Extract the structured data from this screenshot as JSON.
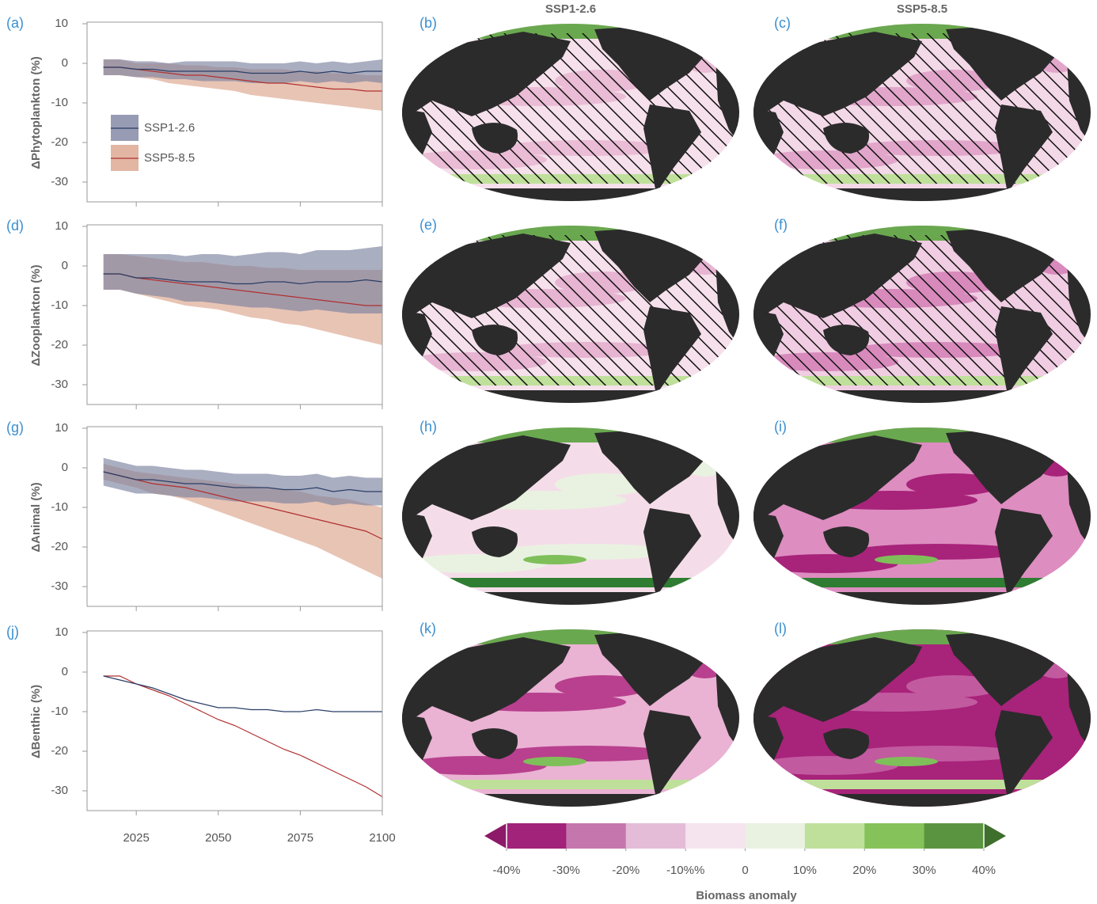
{
  "chart_data": [
    {
      "type": "line",
      "panel_label": "(a)",
      "ylabel": "ΔPhytoplankton (%)",
      "x": [
        2015,
        2020,
        2025,
        2030,
        2035,
        2040,
        2045,
        2050,
        2055,
        2060,
        2065,
        2070,
        2075,
        2080,
        2085,
        2090,
        2095,
        2100
      ],
      "xlim": [
        2010,
        2100
      ],
      "xticks": [
        2025,
        2050,
        2075,
        2100
      ],
      "xtick_labels": false,
      "ylim": [
        -35,
        10
      ],
      "yticks": [
        10,
        0,
        -10,
        -20,
        -30
      ],
      "legend": "upper left",
      "series": [
        {
          "name": "SSP5-8.5",
          "color": "#b03030",
          "band_color": "#dba48c",
          "values": [
            -1,
            -1,
            -1.5,
            -2,
            -2.5,
            -3,
            -3,
            -3.5,
            -4,
            -4.5,
            -5,
            -5,
            -5.5,
            -6,
            -6.5,
            -6.5,
            -7,
            -7
          ],
          "lower": [
            -3,
            -3,
            -3.5,
            -4,
            -5,
            -5.5,
            -6,
            -6.5,
            -7,
            -8,
            -8.5,
            -9,
            -9.5,
            -10,
            -10.5,
            -11,
            -11.5,
            -12
          ],
          "upper": [
            1,
            1,
            0,
            0,
            0,
            -0.5,
            -0.5,
            -1,
            -1,
            -1.5,
            -1.5,
            -1.5,
            -2,
            -2,
            -2.5,
            -2.5,
            -3,
            -3
          ]
        },
        {
          "name": "SSP1-2.6",
          "color": "#2a3e66",
          "band_color": "#7d82a0",
          "values": [
            -1,
            -1,
            -1.5,
            -1.5,
            -2,
            -2,
            -2,
            -2,
            -2,
            -2.5,
            -2.5,
            -2.5,
            -2,
            -2.5,
            -2,
            -2.5,
            -2,
            -2
          ],
          "lower": [
            -3,
            -3,
            -3.5,
            -3.5,
            -4,
            -4,
            -4.5,
            -4.5,
            -4.5,
            -5,
            -5,
            -5,
            -4.5,
            -5,
            -4.5,
            -5,
            -4.5,
            -5
          ],
          "upper": [
            1,
            1,
            0.5,
            0.5,
            0,
            0.5,
            0.5,
            0.5,
            0.5,
            0,
            0,
            0,
            0.5,
            0,
            0.5,
            0,
            0.5,
            1
          ]
        }
      ]
    },
    {
      "type": "line",
      "panel_label": "(d)",
      "ylabel": "ΔZooplankton (%)",
      "x": [
        2015,
        2020,
        2025,
        2030,
        2035,
        2040,
        2045,
        2050,
        2055,
        2060,
        2065,
        2070,
        2075,
        2080,
        2085,
        2090,
        2095,
        2100
      ],
      "xlim": [
        2010,
        2100
      ],
      "xticks": [
        2025,
        2050,
        2075,
        2100
      ],
      "xtick_labels": false,
      "ylim": [
        -35,
        10
      ],
      "yticks": [
        10,
        0,
        -10,
        -20,
        -30
      ],
      "series": [
        {
          "color": "#b03030",
          "band_color": "#dba48c",
          "values": [
            -2,
            -2,
            -3,
            -3.5,
            -4,
            -4.5,
            -5,
            -5.5,
            -6,
            -6.5,
            -7,
            -7.5,
            -8,
            -8.5,
            -9,
            -9.5,
            -10,
            -10
          ],
          "lower": [
            -6,
            -6,
            -7,
            -8,
            -9,
            -10,
            -10.5,
            -11,
            -12,
            -13,
            -13.5,
            -14.5,
            -15,
            -16,
            -17,
            -18,
            -19,
            -20
          ],
          "upper": [
            3,
            3,
            2.5,
            2,
            1.5,
            1,
            1,
            0.5,
            0,
            0,
            -0.5,
            -0.5,
            -1,
            -1,
            -1,
            -1,
            -1,
            -1
          ]
        },
        {
          "color": "#2a3e66",
          "band_color": "#7d82a0",
          "values": [
            -2,
            -2,
            -3,
            -3,
            -3.5,
            -4,
            -4,
            -4,
            -4.5,
            -4.5,
            -4,
            -4,
            -4.5,
            -4,
            -4,
            -4,
            -3.5,
            -4
          ],
          "lower": [
            -6,
            -6,
            -7,
            -7.5,
            -8,
            -9,
            -9,
            -9.5,
            -10,
            -10.5,
            -10.5,
            -11,
            -11.5,
            -11,
            -11.5,
            -12,
            -12,
            -12
          ],
          "upper": [
            3,
            3,
            3,
            3,
            3,
            2.5,
            3,
            3,
            2.5,
            3,
            3.5,
            3.5,
            3,
            4,
            4,
            4,
            4.5,
            5
          ]
        }
      ]
    },
    {
      "type": "line",
      "panel_label": "(g)",
      "ylabel": "ΔAnimal (%)",
      "x": [
        2015,
        2020,
        2025,
        2030,
        2035,
        2040,
        2045,
        2050,
        2055,
        2060,
        2065,
        2070,
        2075,
        2080,
        2085,
        2090,
        2095,
        2100
      ],
      "xlim": [
        2010,
        2100
      ],
      "xticks": [
        2025,
        2050,
        2075,
        2100
      ],
      "xtick_labels": false,
      "ylim": [
        -35,
        10
      ],
      "yticks": [
        10,
        0,
        -10,
        -20,
        -30
      ],
      "series": [
        {
          "color": "#b03030",
          "band_color": "#dba48c",
          "values": [
            -1,
            -2,
            -3,
            -4,
            -4.5,
            -5,
            -6,
            -7,
            -8,
            -9,
            -10,
            -11,
            -12,
            -13,
            -14,
            -15,
            -16,
            -18
          ],
          "lower": [
            -3,
            -4,
            -5,
            -6.5,
            -7,
            -8,
            -9.5,
            -11,
            -12.5,
            -14,
            -15.5,
            -17,
            -18.5,
            -20,
            -22,
            -24,
            -26,
            -28
          ],
          "upper": [
            1,
            0,
            -1,
            -1.5,
            -2,
            -2.5,
            -3,
            -3.5,
            -4,
            -4.5,
            -5,
            -5.5,
            -6,
            -7,
            -7.5,
            -8,
            -9,
            -10
          ]
        },
        {
          "color": "#2a3e66",
          "band_color": "#7d82a0",
          "values": [
            -1,
            -2,
            -3,
            -3,
            -3.5,
            -4,
            -4,
            -4.5,
            -5,
            -5,
            -5,
            -5.5,
            -5.5,
            -5,
            -6,
            -5.5,
            -6,
            -6
          ],
          "lower": [
            -4.5,
            -5.5,
            -6.5,
            -6.5,
            -7,
            -7.5,
            -7.5,
            -8,
            -8.5,
            -8.5,
            -8.5,
            -9,
            -9,
            -8.5,
            -9.5,
            -9,
            -9.5,
            -9.5
          ],
          "upper": [
            2.5,
            1.5,
            0.5,
            0.5,
            0,
            -0.5,
            -0.5,
            -1,
            -1.5,
            -1.5,
            -1.5,
            -2,
            -2,
            -1.5,
            -2.5,
            -2,
            -2.5,
            -2.5
          ]
        }
      ]
    },
    {
      "type": "line",
      "panel_label": "(j)",
      "ylabel": "ΔBenthic (%)",
      "x": [
        2015,
        2020,
        2025,
        2030,
        2035,
        2040,
        2045,
        2050,
        2055,
        2060,
        2065,
        2070,
        2075,
        2080,
        2085,
        2090,
        2095,
        2100
      ],
      "xlim": [
        2010,
        2100
      ],
      "xticks": [
        2025,
        2050,
        2075,
        2100
      ],
      "xtick_labels": true,
      "ylim": [
        -35,
        10
      ],
      "yticks": [
        10,
        0,
        -10,
        -20,
        -30
      ],
      "series": [
        {
          "color": "#b03030",
          "values": [
            -1,
            -1,
            -3,
            -4.5,
            -6,
            -8,
            -10,
            -12,
            -13.5,
            -15.5,
            -17.5,
            -19.5,
            -21,
            -23,
            -25,
            -27,
            -29,
            -31.5
          ]
        },
        {
          "color": "#2a3e66",
          "values": [
            -1,
            -2,
            -3,
            -4,
            -5.5,
            -7,
            -8,
            -9,
            -9,
            -9.5,
            -9.5,
            -10,
            -10,
            -9.5,
            -10,
            -10,
            -10,
            -10
          ]
        }
      ]
    }
  ],
  "maps": {
    "column_titles": [
      "SSP1-2.6",
      "SSP5-8.5"
    ],
    "panel_labels": [
      "(b)",
      "(c)",
      "(e)",
      "(f)",
      "(h)",
      "(i)",
      "(k)",
      "(l)"
    ]
  },
  "colorbar": {
    "label": "Biomass anomaly",
    "lim": [
      -40,
      40
    ],
    "colors": [
      "#a2237a",
      "#c577ad",
      "#e4bcd8",
      "#f5e4ee",
      "#e9f2e1",
      "#bfe09a",
      "#86c25a",
      "#5a9440"
    ],
    "extend_colors": [
      "#8c1a68",
      "#3f6f2c"
    ],
    "ticks": [
      {
        "value": -40,
        "label": "-40%"
      },
      {
        "value": -30,
        "label": "-30%"
      },
      {
        "value": -20,
        "label": "-20%"
      },
      {
        "value": -10,
        "label": "-10%%"
      },
      0,
      {
        "value": 10,
        "label": "10%"
      },
      {
        "value": 20,
        "label": "20%"
      },
      {
        "value": 30,
        "label": "30%"
      },
      {
        "value": 40,
        "label": "40%"
      }
    ]
  }
}
